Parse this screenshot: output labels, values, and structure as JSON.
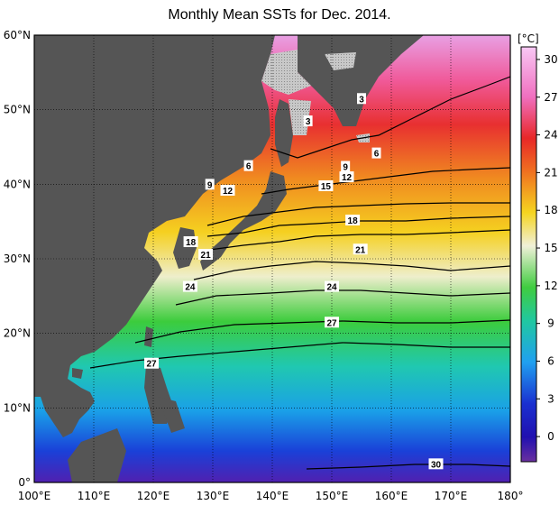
{
  "title": "Monthly Mean SSTs for Dec. 2014.",
  "map": {
    "lon_range": [
      100,
      180
    ],
    "lat_range": [
      0,
      60
    ],
    "lon_ticks": [
      100,
      110,
      120,
      130,
      140,
      150,
      160,
      170,
      180
    ],
    "lon_tick_labels": [
      "100°E",
      "110°E",
      "120°E",
      "130°E",
      "140°E",
      "150°E",
      "160°E",
      "170°E",
      "180°"
    ],
    "lat_ticks": [
      0,
      10,
      20,
      30,
      40,
      50,
      60
    ],
    "lat_tick_labels": [
      "0°",
      "10°N",
      "20°N",
      "30°N",
      "40°N",
      "50°N",
      "60°N"
    ],
    "grid": true,
    "land_color": "#555555",
    "ice_color": "#bdbdbd"
  },
  "colorbar": {
    "unit": "[°C]",
    "ticks": [
      0,
      3,
      6,
      9,
      12,
      15,
      18,
      21,
      24,
      27,
      30
    ],
    "tick_labels": [
      "0",
      "3",
      "6",
      "9",
      "12",
      "15",
      "18",
      "21",
      "24",
      "27",
      "30"
    ],
    "range": [
      -2,
      31
    ]
  },
  "isotherm_labels": [
    {
      "text": "3",
      "lon": 146,
      "lat": 48.5
    },
    {
      "text": "3",
      "lon": 155,
      "lat": 51.5
    },
    {
      "text": "6",
      "lon": 136,
      "lat": 42.5
    },
    {
      "text": "6",
      "lon": 157.5,
      "lat": 44.2
    },
    {
      "text": "9",
      "lon": 129.5,
      "lat": 40.0
    },
    {
      "text": "9",
      "lon": 152.3,
      "lat": 42.4
    },
    {
      "text": "12",
      "lon": 132.5,
      "lat": 39.2
    },
    {
      "text": "12",
      "lon": 152.5,
      "lat": 41.0
    },
    {
      "text": "15",
      "lon": 149,
      "lat": 39.8
    },
    {
      "text": "18",
      "lon": 126.3,
      "lat": 32.3
    },
    {
      "text": "18",
      "lon": 153.5,
      "lat": 35.2
    },
    {
      "text": "21",
      "lon": 128.8,
      "lat": 30.6
    },
    {
      "text": "21",
      "lon": 154.8,
      "lat": 31.3
    },
    {
      "text": "24",
      "lon": 126.2,
      "lat": 26.3
    },
    {
      "text": "24",
      "lon": 150,
      "lat": 26.3
    },
    {
      "text": "27",
      "lon": 150,
      "lat": 21.5
    },
    {
      "text": "27",
      "lon": 119.7,
      "lat": 16.0
    },
    {
      "text": "30",
      "lon": 167.5,
      "lat": 2.5
    }
  ]
}
